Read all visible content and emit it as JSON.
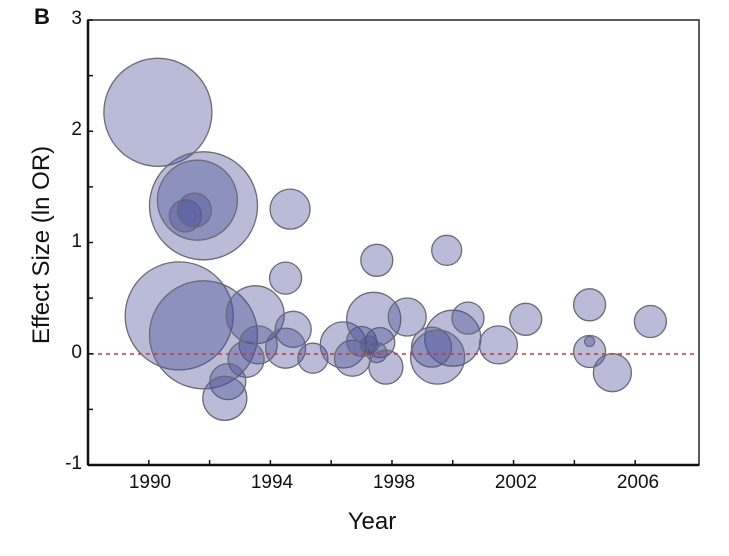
{
  "panel_label": "B",
  "chart_data": {
    "type": "scatter",
    "subtype": "bubble",
    "title": "",
    "xlabel": "Year",
    "ylabel": "Effect Size (ln OR)",
    "xlim": [
      1988,
      2008.1
    ],
    "ylim": [
      -1,
      3
    ],
    "x_ticks": [
      1990,
      1994,
      1998,
      2002,
      2006
    ],
    "x_minor_ticks": [
      1992,
      1996,
      2000,
      2004
    ],
    "y_ticks": [
      -1,
      0,
      1,
      2,
      3
    ],
    "y_minor_ticks": [
      -0.5,
      0.5,
      1.5,
      2.5
    ],
    "grid": false,
    "legend": null,
    "reference_line": {
      "y": 0,
      "style": "dashed",
      "color": "#c0393f"
    },
    "bubble_fill": "rgba(70,75,150,0.38)",
    "bubble_stroke": "#6a6a78",
    "points": [
      {
        "year": 1990.3,
        "effect": 2.17,
        "size": 54
      },
      {
        "year": 1991.8,
        "effect": 1.33,
        "size": 54
      },
      {
        "year": 1991.6,
        "effect": 1.38,
        "size": 40
      },
      {
        "year": 1991.2,
        "effect": 1.24,
        "size": 16
      },
      {
        "year": 1991.5,
        "effect": 1.29,
        "size": 17
      },
      {
        "year": 1991.0,
        "effect": 0.34,
        "size": 54
      },
      {
        "year": 1991.8,
        "effect": 0.17,
        "size": 54
      },
      {
        "year": 1993.5,
        "effect": 0.35,
        "size": 29
      },
      {
        "year": 1994.75,
        "effect": 0.22,
        "size": 18
      },
      {
        "year": 1993.6,
        "effect": 0.08,
        "size": 19
      },
      {
        "year": 1994.5,
        "effect": 0.05,
        "size": 20
      },
      {
        "year": 1993.2,
        "effect": -0.05,
        "size": 18
      },
      {
        "year": 1992.6,
        "effect": -0.25,
        "size": 18
      },
      {
        "year": 1992.5,
        "effect": -0.4,
        "size": 22
      },
      {
        "year": 1994.65,
        "effect": 1.3,
        "size": 20
      },
      {
        "year": 1994.5,
        "effect": 0.68,
        "size": 16
      },
      {
        "year": 1995.4,
        "effect": -0.04,
        "size": 15
      },
      {
        "year": 1996.4,
        "effect": 0.08,
        "size": 23
      },
      {
        "year": 1996.7,
        "effect": -0.04,
        "size": 18
      },
      {
        "year": 1997.0,
        "effect": 0.11,
        "size": 15
      },
      {
        "year": 1997.6,
        "effect": 0.1,
        "size": 15
      },
      {
        "year": 1997.25,
        "effect": 0.08,
        "size": 9
      },
      {
        "year": 1997.5,
        "effect": 0.01,
        "size": 10
      },
      {
        "year": 1997.8,
        "effect": -0.12,
        "size": 17
      },
      {
        "year": 1997.4,
        "effect": 0.31,
        "size": 27
      },
      {
        "year": 1998.5,
        "effect": 0.33,
        "size": 19
      },
      {
        "year": 1997.5,
        "effect": 0.84,
        "size": 16
      },
      {
        "year": 1999.8,
        "effect": 0.93,
        "size": 15
      },
      {
        "year": 2000.0,
        "effect": 0.14,
        "size": 28
      },
      {
        "year": 2000.5,
        "effect": 0.32,
        "size": 16
      },
      {
        "year": 1999.3,
        "effect": 0.06,
        "size": 20
      },
      {
        "year": 1999.5,
        "effect": -0.03,
        "size": 27
      },
      {
        "year": 2001.5,
        "effect": 0.08,
        "size": 19
      },
      {
        "year": 2002.4,
        "effect": 0.31,
        "size": 16
      },
      {
        "year": 2004.5,
        "effect": 0.44,
        "size": 16
      },
      {
        "year": 2004.5,
        "effect": 0.02,
        "size": 16
      },
      {
        "year": 2004.5,
        "effect": 0.11,
        "size": 5
      },
      {
        "year": 2005.25,
        "effect": -0.17,
        "size": 19
      },
      {
        "year": 2006.5,
        "effect": 0.29,
        "size": 16
      }
    ]
  },
  "axes": {
    "y_tick_labels": [
      "3",
      "2",
      "1",
      "0",
      "-1"
    ],
    "x_tick_labels": [
      "1990",
      "1994",
      "1998",
      "2002",
      "2006"
    ]
  }
}
